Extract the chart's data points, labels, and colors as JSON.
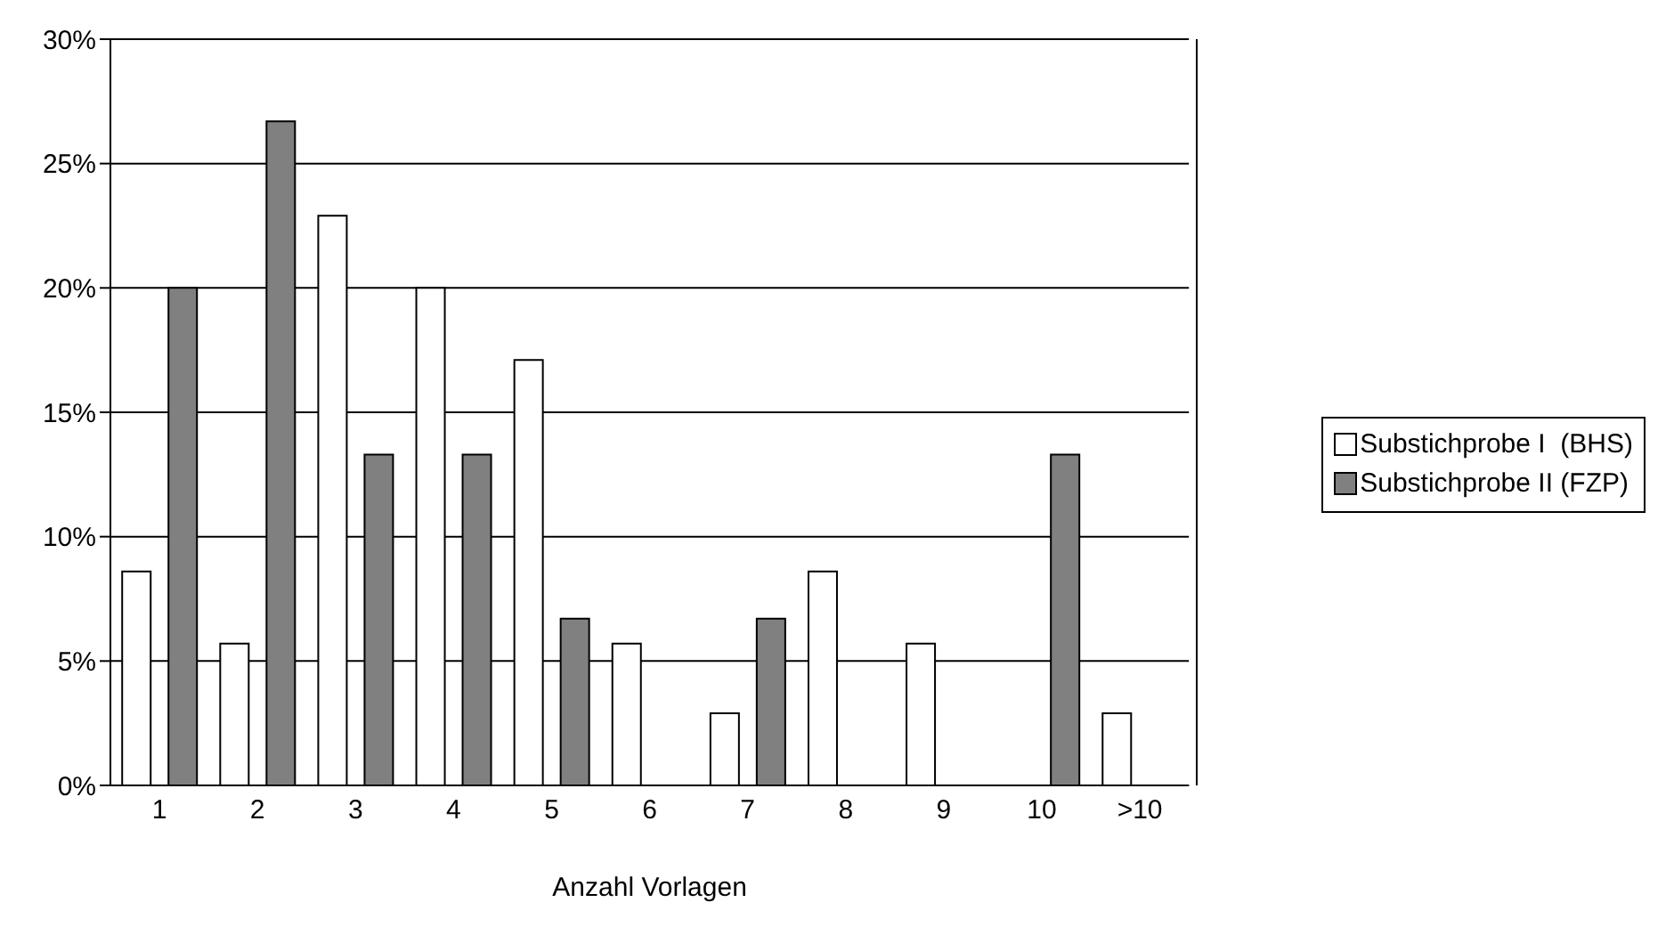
{
  "chart_data": {
    "type": "bar",
    "xlabel": "Anzahl Vorlagen",
    "categories": [
      "1",
      "2",
      "3",
      "4",
      "5",
      "6",
      "7",
      "8",
      "9",
      "10",
      ">10"
    ],
    "series": [
      {
        "name": "Substichprobe I  (BHS)",
        "color": "#ffffff",
        "values": [
          8.6,
          5.7,
          22.9,
          20,
          17.1,
          5.7,
          2.9,
          8.6,
          5.7,
          0,
          2.9
        ]
      },
      {
        "name": "Substichprobe II (FZP)",
        "color": "#808080",
        "values": [
          20,
          26.7,
          13.3,
          13.3,
          6.7,
          0,
          6.7,
          0,
          0,
          13.3,
          0
        ]
      }
    ],
    "ylim": [
      0,
      30
    ],
    "yticks": [
      {
        "value": 0,
        "label": "0%"
      },
      {
        "value": 5,
        "label": "5%"
      },
      {
        "value": 10,
        "label": "10%"
      },
      {
        "value": 15,
        "label": "15%"
      },
      {
        "value": 20,
        "label": "20%"
      },
      {
        "value": 25,
        "label": "25%"
      },
      {
        "value": 30,
        "label": "30%"
      }
    ],
    "grid": "y",
    "legend": "right"
  }
}
